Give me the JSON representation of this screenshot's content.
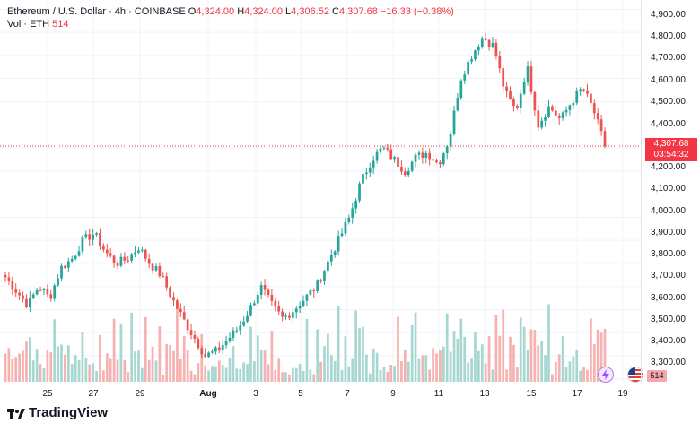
{
  "legend": {
    "symbol": "Ethereum / U.S. Dollar · 4h · COINBASE",
    "open_label": "O",
    "open": "4,324.00",
    "high_label": "H",
    "high": "4,324.00",
    "low_label": "L",
    "low": "4,306.52",
    "close_label": "C",
    "close": "4,307.68",
    "change": "−16.33 (−0.38%)",
    "vol_label": "Vol · ETH",
    "vol_value": "514"
  },
  "price_axis": {
    "ticks": [
      "4,900.00",
      "4,800.00",
      "4,700.00",
      "4,600.00",
      "4,500.00",
      "4,400.00",
      "4,307.68",
      "4,200.00",
      "4,100.00",
      "4,000.00",
      "3,900.00",
      "3,800.00",
      "3,700.00",
      "3,600.00",
      "3,500.00",
      "3,400.00",
      "3,300.00"
    ],
    "last_price": "4,307.68",
    "countdown": "03:54:32",
    "volume_badge": "514"
  },
  "time_axis": {
    "ticks": [
      "25",
      "27",
      "29",
      "Aug",
      "3",
      "5",
      "7",
      "9",
      "11",
      "13",
      "15",
      "17",
      "19"
    ]
  },
  "footer": {
    "brand": "TradingView"
  },
  "icons": {
    "event": "lightning-icon",
    "flag": "us-flag-icon"
  },
  "colors": {
    "up": "#26a69a",
    "down": "#ef5350",
    "vol_up": "#a7d7d1",
    "vol_down": "#f5b2b0",
    "price_line": "#f23645"
  },
  "chart_data": {
    "type": "candlestick",
    "ylim": [
      3280,
      4940
    ],
    "anchor_closes": [
      3740,
      3680,
      3620,
      3700,
      3650,
      3780,
      3820,
      3900,
      3930,
      3850,
      3800,
      3820,
      3870,
      3800,
      3750,
      3650,
      3560,
      3480,
      3400,
      3420,
      3470,
      3520,
      3600,
      3700,
      3620,
      3560,
      3600,
      3650,
      3700,
      3800,
      3900,
      4000,
      4150,
      4250,
      4300,
      4250,
      4200,
      4260,
      4280,
      4230,
      4340,
      4600,
      4700,
      4780,
      4740,
      4540,
      4460,
      4650,
      4400,
      4480,
      4420,
      4500,
      4560,
      4460,
      4310
    ]
  }
}
